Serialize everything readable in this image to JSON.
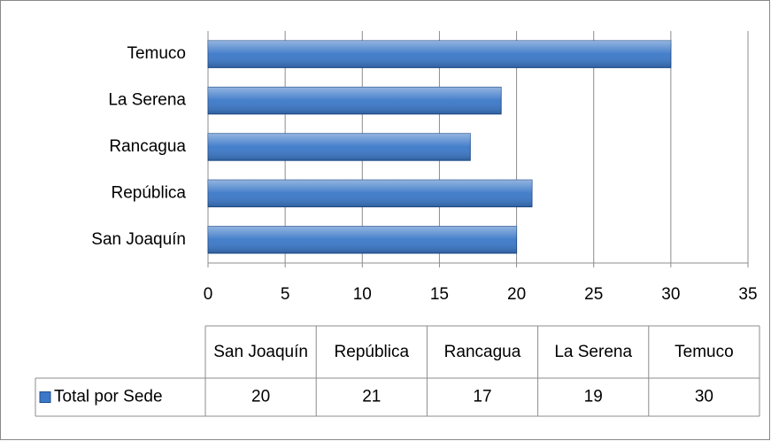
{
  "chart_data": {
    "type": "bar",
    "orientation": "horizontal",
    "categories": [
      "San Joaquín",
      "República",
      "Rancagua",
      "La Serena",
      "Temuco"
    ],
    "series": [
      {
        "name": "Total por Sede",
        "color": "#3b78c8",
        "values": [
          20,
          21,
          17,
          19,
          30
        ]
      }
    ],
    "xlim": [
      0,
      35
    ],
    "xticks": [
      0,
      5,
      10,
      15,
      20,
      25,
      30,
      35
    ],
    "grid": true,
    "data_table": true
  }
}
